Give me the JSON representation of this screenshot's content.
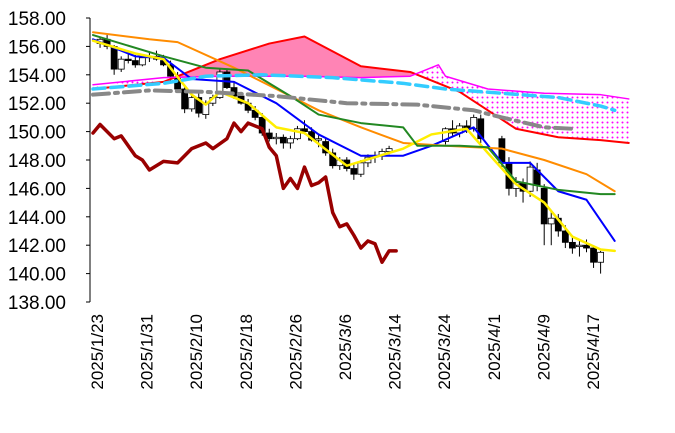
{
  "chart_data": {
    "type": "line",
    "title": "",
    "xlabel": "",
    "ylabel": "",
    "ylim": [
      138,
      158
    ],
    "y_ticks": [
      "158.00",
      "156.00",
      "154.00",
      "152.00",
      "150.00",
      "148.00",
      "146.00",
      "144.00",
      "142.00",
      "140.00",
      "138.00"
    ],
    "x_ticks": [
      "2025/1/23",
      "2025/1/31",
      "2025/2/10",
      "2025/2/18",
      "2025/2/26",
      "2025/3/6",
      "2025/3/14",
      "2025/3/24",
      "2025/4/1",
      "2025/4/9",
      "2025/4/17"
    ],
    "grid": false,
    "legend": "none",
    "colors": {
      "kumo_fill_a": "#ff6fa8",
      "kumo_fill_b": "#ff44cc",
      "span_a": "#ff0000",
      "span_b": "#ff00ff",
      "tenkan": "#0000ff",
      "kijun": "#ff8c00",
      "ma_short": "#ffee00",
      "ma_mid": "#228822",
      "ma_long": "#33ccff",
      "ma_longest": "#888888",
      "chikou": "#990000"
    },
    "candles": [
      [
        1,
        156.2,
        156.7,
        155.9,
        156.5
      ],
      [
        2,
        156.5,
        156.8,
        155.8,
        156.0
      ],
      [
        3,
        156.0,
        156.1,
        154.0,
        154.4
      ],
      [
        4,
        154.4,
        155.3,
        154.2,
        155.1
      ],
      [
        5,
        155.1,
        155.5,
        154.8,
        155.0
      ],
      [
        6,
        155.0,
        155.4,
        154.5,
        154.7
      ],
      [
        7,
        154.7,
        155.3,
        154.6,
        155.2
      ],
      [
        8,
        155.2,
        155.6,
        154.9,
        155.3
      ],
      [
        9,
        155.3,
        155.7,
        155.0,
        155.1
      ],
      [
        10,
        155.0,
        155.4,
        154.6,
        154.7
      ],
      [
        11,
        154.7,
        155.0,
        153.6,
        153.9
      ],
      [
        12,
        153.8,
        154.2,
        152.8,
        153.0
      ],
      [
        13,
        153.0,
        153.3,
        151.3,
        151.6
      ],
      [
        14,
        151.6,
        152.6,
        151.4,
        152.4
      ],
      [
        15,
        152.4,
        152.7,
        151.0,
        151.3
      ],
      [
        16,
        151.2,
        152.2,
        150.9,
        152.0
      ],
      [
        17,
        152.0,
        152.6,
        151.8,
        152.4
      ],
      [
        18,
        152.4,
        154.4,
        152.3,
        154.2
      ],
      [
        19,
        154.2,
        154.4,
        153.0,
        153.1
      ],
      [
        20,
        153.1,
        153.5,
        152.3,
        152.5
      ],
      [
        21,
        152.5,
        152.8,
        151.9,
        152.0
      ],
      [
        22,
        152.0,
        152.3,
        151.3,
        151.5
      ],
      [
        23,
        151.5,
        151.8,
        150.8,
        151.0
      ],
      [
        24,
        151.0,
        151.3,
        149.7,
        149.9
      ],
      [
        25,
        149.9,
        150.2,
        149.3,
        149.5
      ],
      [
        26,
        149.5,
        149.9,
        149.1,
        149.6
      ],
      [
        27,
        149.6,
        149.8,
        148.8,
        149.2
      ],
      [
        28,
        149.2,
        149.7,
        148.8,
        149.5
      ],
      [
        29,
        149.5,
        150.4,
        149.4,
        150.2
      ],
      [
        30,
        150.2,
        150.8,
        149.8,
        150.0
      ],
      [
        31,
        150.0,
        150.3,
        149.3,
        149.4
      ],
      [
        32,
        149.4,
        149.8,
        148.9,
        149.5
      ],
      [
        33,
        149.3,
        149.5,
        148.3,
        148.5
      ],
      [
        34,
        148.5,
        148.8,
        147.4,
        147.6
      ],
      [
        35,
        147.6,
        148.2,
        147.3,
        148.0
      ],
      [
        36,
        148.0,
        148.2,
        147.2,
        147.4
      ],
      [
        37,
        147.4,
        147.7,
        146.6,
        147.0
      ],
      [
        38,
        147.0,
        148.0,
        146.8,
        147.8
      ],
      [
        39,
        147.8,
        148.4,
        147.5,
        148.2
      ],
      [
        40,
        148.2,
        148.6,
        147.8,
        148.3
      ],
      [
        41,
        148.3,
        148.8,
        148.0,
        148.6
      ],
      [
        42,
        148.6,
        149.0,
        148.4,
        148.8
      ],
      [
        50,
        149.3,
        150.3,
        149.1,
        150.2
      ],
      [
        51,
        150.2,
        150.8,
        149.7,
        149.9
      ],
      [
        52,
        149.9,
        150.6,
        149.6,
        150.4
      ],
      [
        53,
        150.4,
        150.8,
        149.9,
        150.2
      ],
      [
        54,
        150.2,
        151.2,
        150.0,
        151.0
      ],
      [
        55,
        150.9,
        151.2,
        149.2,
        149.5
      ],
      [
        58,
        149.5,
        149.7,
        147.5,
        147.8
      ],
      [
        59,
        147.8,
        148.2,
        145.5,
        146.0
      ],
      [
        60,
        146.0,
        146.8,
        145.4,
        146.4
      ],
      [
        61,
        146.4,
        146.7,
        145.0,
        145.8
      ],
      [
        62,
        145.8,
        147.9,
        145.4,
        147.5
      ],
      [
        63,
        147.3,
        147.8,
        145.8,
        146.2
      ],
      [
        64,
        146.0,
        146.3,
        142.0,
        143.5
      ],
      [
        65,
        143.5,
        144.4,
        142.0,
        143.9
      ],
      [
        66,
        143.9,
        144.2,
        142.6,
        143.0
      ],
      [
        67,
        143.0,
        143.4,
        141.8,
        142.2
      ],
      [
        68,
        142.2,
        142.6,
        141.4,
        141.8
      ],
      [
        69,
        141.9,
        142.3,
        141.2,
        142.0
      ],
      [
        70,
        142.0,
        142.4,
        141.5,
        141.8
      ],
      [
        71,
        141.8,
        142.0,
        140.4,
        140.8
      ],
      [
        72,
        140.8,
        141.6,
        140.0,
        141.5
      ]
    ],
    "series": [
      {
        "color": "#ff0000",
        "points": [
          [
            0,
            153.0
          ],
          [
            10,
            153.5
          ],
          [
            18,
            155.1
          ],
          [
            25,
            156.2
          ],
          [
            30,
            156.7
          ],
          [
            38,
            154.6
          ],
          [
            45,
            154.2
          ],
          [
            52,
            152.8
          ],
          [
            60,
            150.2
          ],
          [
            66,
            149.6
          ],
          [
            72,
            149.4
          ],
          [
            76,
            149.2
          ]
        ]
      },
      {
        "color": "#ff00ff",
        "points": [
          [
            0,
            153.3
          ],
          [
            10,
            153.8
          ],
          [
            18,
            153.9
          ],
          [
            30,
            153.9
          ],
          [
            38,
            153.8
          ],
          [
            45,
            153.9
          ],
          [
            49,
            154.7
          ],
          [
            50,
            153.9
          ],
          [
            56,
            153.0
          ],
          [
            64,
            152.7
          ],
          [
            72,
            152.6
          ],
          [
            76,
            152.3
          ]
        ]
      },
      {
        "color": "#0000ff",
        "points": [
          [
            0,
            156.5
          ],
          [
            6,
            155.3
          ],
          [
            10,
            155.2
          ],
          [
            14,
            153.7
          ],
          [
            20,
            153.5
          ],
          [
            26,
            152.0
          ],
          [
            32,
            149.8
          ],
          [
            38,
            148.3
          ],
          [
            44,
            148.3
          ],
          [
            48,
            149.0
          ],
          [
            54,
            150.3
          ],
          [
            58,
            147.8
          ],
          [
            62,
            147.8
          ],
          [
            66,
            145.8
          ],
          [
            70,
            145.2
          ],
          [
            74,
            142.3
          ]
        ]
      },
      {
        "color": "#ff8c00",
        "points": [
          [
            0,
            157.0
          ],
          [
            8,
            156.5
          ],
          [
            12,
            156.3
          ],
          [
            20,
            154.5
          ],
          [
            26,
            153.0
          ],
          [
            32,
            151.5
          ],
          [
            38,
            150.3
          ],
          [
            44,
            149.2
          ],
          [
            50,
            149.0
          ],
          [
            58,
            148.8
          ],
          [
            64,
            148.0
          ],
          [
            70,
            147.0
          ],
          [
            74,
            145.8
          ]
        ]
      },
      {
        "color": "#ffee00",
        "points": [
          [
            0,
            156.4
          ],
          [
            6,
            155.5
          ],
          [
            10,
            155.1
          ],
          [
            14,
            152.6
          ],
          [
            16,
            151.9
          ],
          [
            18,
            152.8
          ],
          [
            22,
            152.0
          ],
          [
            26,
            150.3
          ],
          [
            30,
            149.9
          ],
          [
            36,
            147.6
          ],
          [
            40,
            148.2
          ],
          [
            44,
            148.8
          ],
          [
            48,
            149.8
          ],
          [
            53,
            150.2
          ],
          [
            56,
            148.5
          ],
          [
            60,
            146.3
          ],
          [
            64,
            145.0
          ],
          [
            68,
            142.6
          ],
          [
            72,
            141.7
          ],
          [
            74,
            141.6
          ]
        ]
      },
      {
        "color": "#228822",
        "points": [
          [
            0,
            156.8
          ],
          [
            10,
            155.3
          ],
          [
            16,
            154.5
          ],
          [
            22,
            154.3
          ],
          [
            28,
            152.5
          ],
          [
            32,
            151.2
          ],
          [
            38,
            150.6
          ],
          [
            44,
            150.3
          ],
          [
            46,
            149.0
          ],
          [
            52,
            149.0
          ],
          [
            56,
            148.9
          ],
          [
            60,
            146.5
          ],
          [
            66,
            145.9
          ],
          [
            72,
            145.6
          ],
          [
            74,
            145.6
          ]
        ]
      },
      {
        "color": "#33ccff",
        "points": [
          [
            0,
            153.0
          ],
          [
            10,
            153.4
          ],
          [
            16,
            153.9
          ],
          [
            24,
            154.0
          ],
          [
            34,
            153.8
          ],
          [
            44,
            153.4
          ],
          [
            50,
            153.0
          ],
          [
            58,
            152.7
          ],
          [
            66,
            152.4
          ],
          [
            72,
            151.8
          ],
          [
            74,
            151.5
          ]
        ]
      },
      {
        "color": "#888888",
        "points": [
          [
            0,
            152.6
          ],
          [
            8,
            152.9
          ],
          [
            16,
            152.8
          ],
          [
            26,
            152.5
          ],
          [
            36,
            152.0
          ],
          [
            46,
            151.9
          ],
          [
            54,
            151.5
          ],
          [
            58,
            151.0
          ],
          [
            64,
            150.3
          ],
          [
            68,
            150.2
          ]
        ]
      },
      {
        "color": "#990000",
        "points": [
          [
            0,
            149.9
          ],
          [
            1,
            150.5
          ],
          [
            3,
            149.5
          ],
          [
            4,
            149.7
          ],
          [
            6,
            148.3
          ],
          [
            7,
            148.0
          ],
          [
            8,
            147.3
          ],
          [
            10,
            147.9
          ],
          [
            12,
            147.8
          ],
          [
            14,
            148.8
          ],
          [
            16,
            149.2
          ],
          [
            17,
            148.8
          ],
          [
            19,
            149.5
          ],
          [
            20,
            150.6
          ],
          [
            21,
            150.0
          ],
          [
            22,
            150.6
          ],
          [
            24,
            150.2
          ],
          [
            25,
            148.9
          ],
          [
            26,
            148.3
          ],
          [
            27,
            146.0
          ],
          [
            28,
            146.7
          ],
          [
            29,
            146.0
          ],
          [
            30,
            147.5
          ],
          [
            31,
            146.2
          ],
          [
            32,
            146.4
          ],
          [
            33,
            146.8
          ],
          [
            34,
            144.3
          ],
          [
            35,
            143.3
          ],
          [
            36,
            143.5
          ],
          [
            37,
            142.7
          ],
          [
            38,
            141.8
          ],
          [
            39,
            142.3
          ],
          [
            40,
            142.1
          ],
          [
            41,
            140.8
          ],
          [
            42,
            141.6
          ],
          [
            43,
            141.6
          ]
        ]
      }
    ]
  }
}
